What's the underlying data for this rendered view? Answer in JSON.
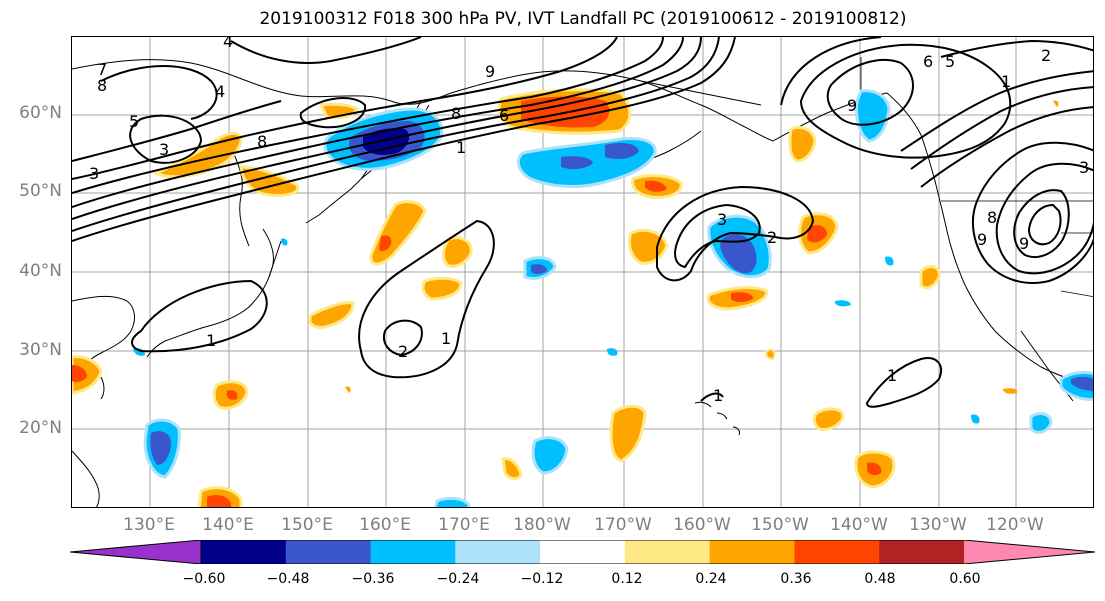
{
  "title": "2019100312 F018 300 hPa PV, IVT Landfall PC (2019100612 - 2019100812)",
  "map": {
    "latitude_labels": [
      "60°N",
      "50°N",
      "40°N",
      "30°N",
      "20°N"
    ],
    "longitude_labels": [
      "130°E",
      "140°E",
      "150°E",
      "160°E",
      "170°E",
      "180°W",
      "170°W",
      "160°W",
      "150°W",
      "140°W",
      "130°W",
      "120°W"
    ],
    "contour_labels": [
      "1",
      "2",
      "3",
      "4",
      "5",
      "6",
      "7",
      "8",
      "9"
    ]
  },
  "colorbar": {
    "tick_labels": [
      "−0.60",
      "−0.48",
      "−0.36",
      "−0.24",
      "−0.12",
      "0.12",
      "0.24",
      "0.36",
      "0.48",
      "0.60"
    ],
    "colors": [
      "#9932CC",
      "#00008B",
      "#3A56CC",
      "#00BFFF",
      "#ADE1FA",
      "#FFFFFF",
      "#FFE985",
      "#FFA500",
      "#FF4500",
      "#B22222",
      "#FF88B0"
    ]
  }
}
